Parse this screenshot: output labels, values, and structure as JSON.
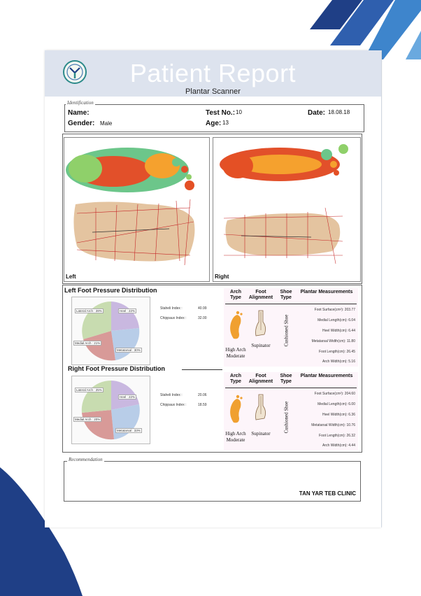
{
  "header": {
    "title": "Patient Report",
    "subtitle": "Plantar Scanner"
  },
  "identification": {
    "legend": "Identification",
    "name_label": "Name:",
    "name_value": "",
    "gender_label": "Gender:",
    "gender_value": "Male",
    "test_label": "Test No.:",
    "test_value": "10",
    "age_label": "Age:",
    "age_value": "13",
    "date_label": "Date:",
    "date_value": "18.08.18"
  },
  "scans": {
    "left_caption": "Left",
    "right_caption": "Right"
  },
  "left_distribution": {
    "title": "Left Foot Pressure Distribution",
    "pie_labels": [
      "Lateral Arch : 28%",
      "Heel : 22%",
      "Medial Arch : 21%",
      "Metatarsal : 30%"
    ],
    "staheli_label": "Staheli Index :",
    "staheli_value": "40.99",
    "chippaux_label": "Chippaux Index :",
    "chippaux_value": "32.00"
  },
  "right_distribution": {
    "title": "Right Foot Pressure Distribution",
    "pie_labels": [
      "Lateral Arch : 25%",
      "Heel : 22%",
      "Medial Arch : 20%",
      "Metatarsal : 33%"
    ],
    "staheli_label": "Staheli Index :",
    "staheli_value": "20.06",
    "chippaux_label": "Chippaux Index :",
    "chippaux_value": "18.59"
  },
  "table_headers": {
    "arch": "Arch Type",
    "alignment": "Foot Alignment",
    "shoe": "Shoe Type",
    "plantar": "Plantar Measurements"
  },
  "left_table": {
    "arch_type": "High Arch Moderate",
    "alignment": "Supinator",
    "shoe": "Cushioned Shoe",
    "measurements": [
      "Foot Surface(cm²): 203.77",
      "Medial Length(cm): 6.04",
      "Heel Width(cm): 6.44",
      "Metatarsal Width(cm): 11.80",
      "Foot Length(cm): 26.45",
      "Arch Width(cm): 5.16"
    ]
  },
  "right_table": {
    "arch_type": "High Arch Moderate",
    "alignment": "Supinator",
    "shoe": "Cushioned Shoe",
    "measurements": [
      "Foot Surface(cm²): 204.60",
      "Medial Length(cm): 6.00",
      "Heel Width(cm): 6.36",
      "Metatarsal Width(cm): 10.76",
      "Foot Length(cm): 26.32",
      "Arch Width(cm): 4.44"
    ]
  },
  "recommendation": {
    "legend": "Recommendation",
    "clinic": "TAN YAR TEB CLINIC"
  },
  "colors": {
    "stripe_dark": "#1f3f86",
    "stripe_light": "#4d9bd8",
    "banner": "#dde3ee",
    "arch_orange": "#f0a030"
  }
}
